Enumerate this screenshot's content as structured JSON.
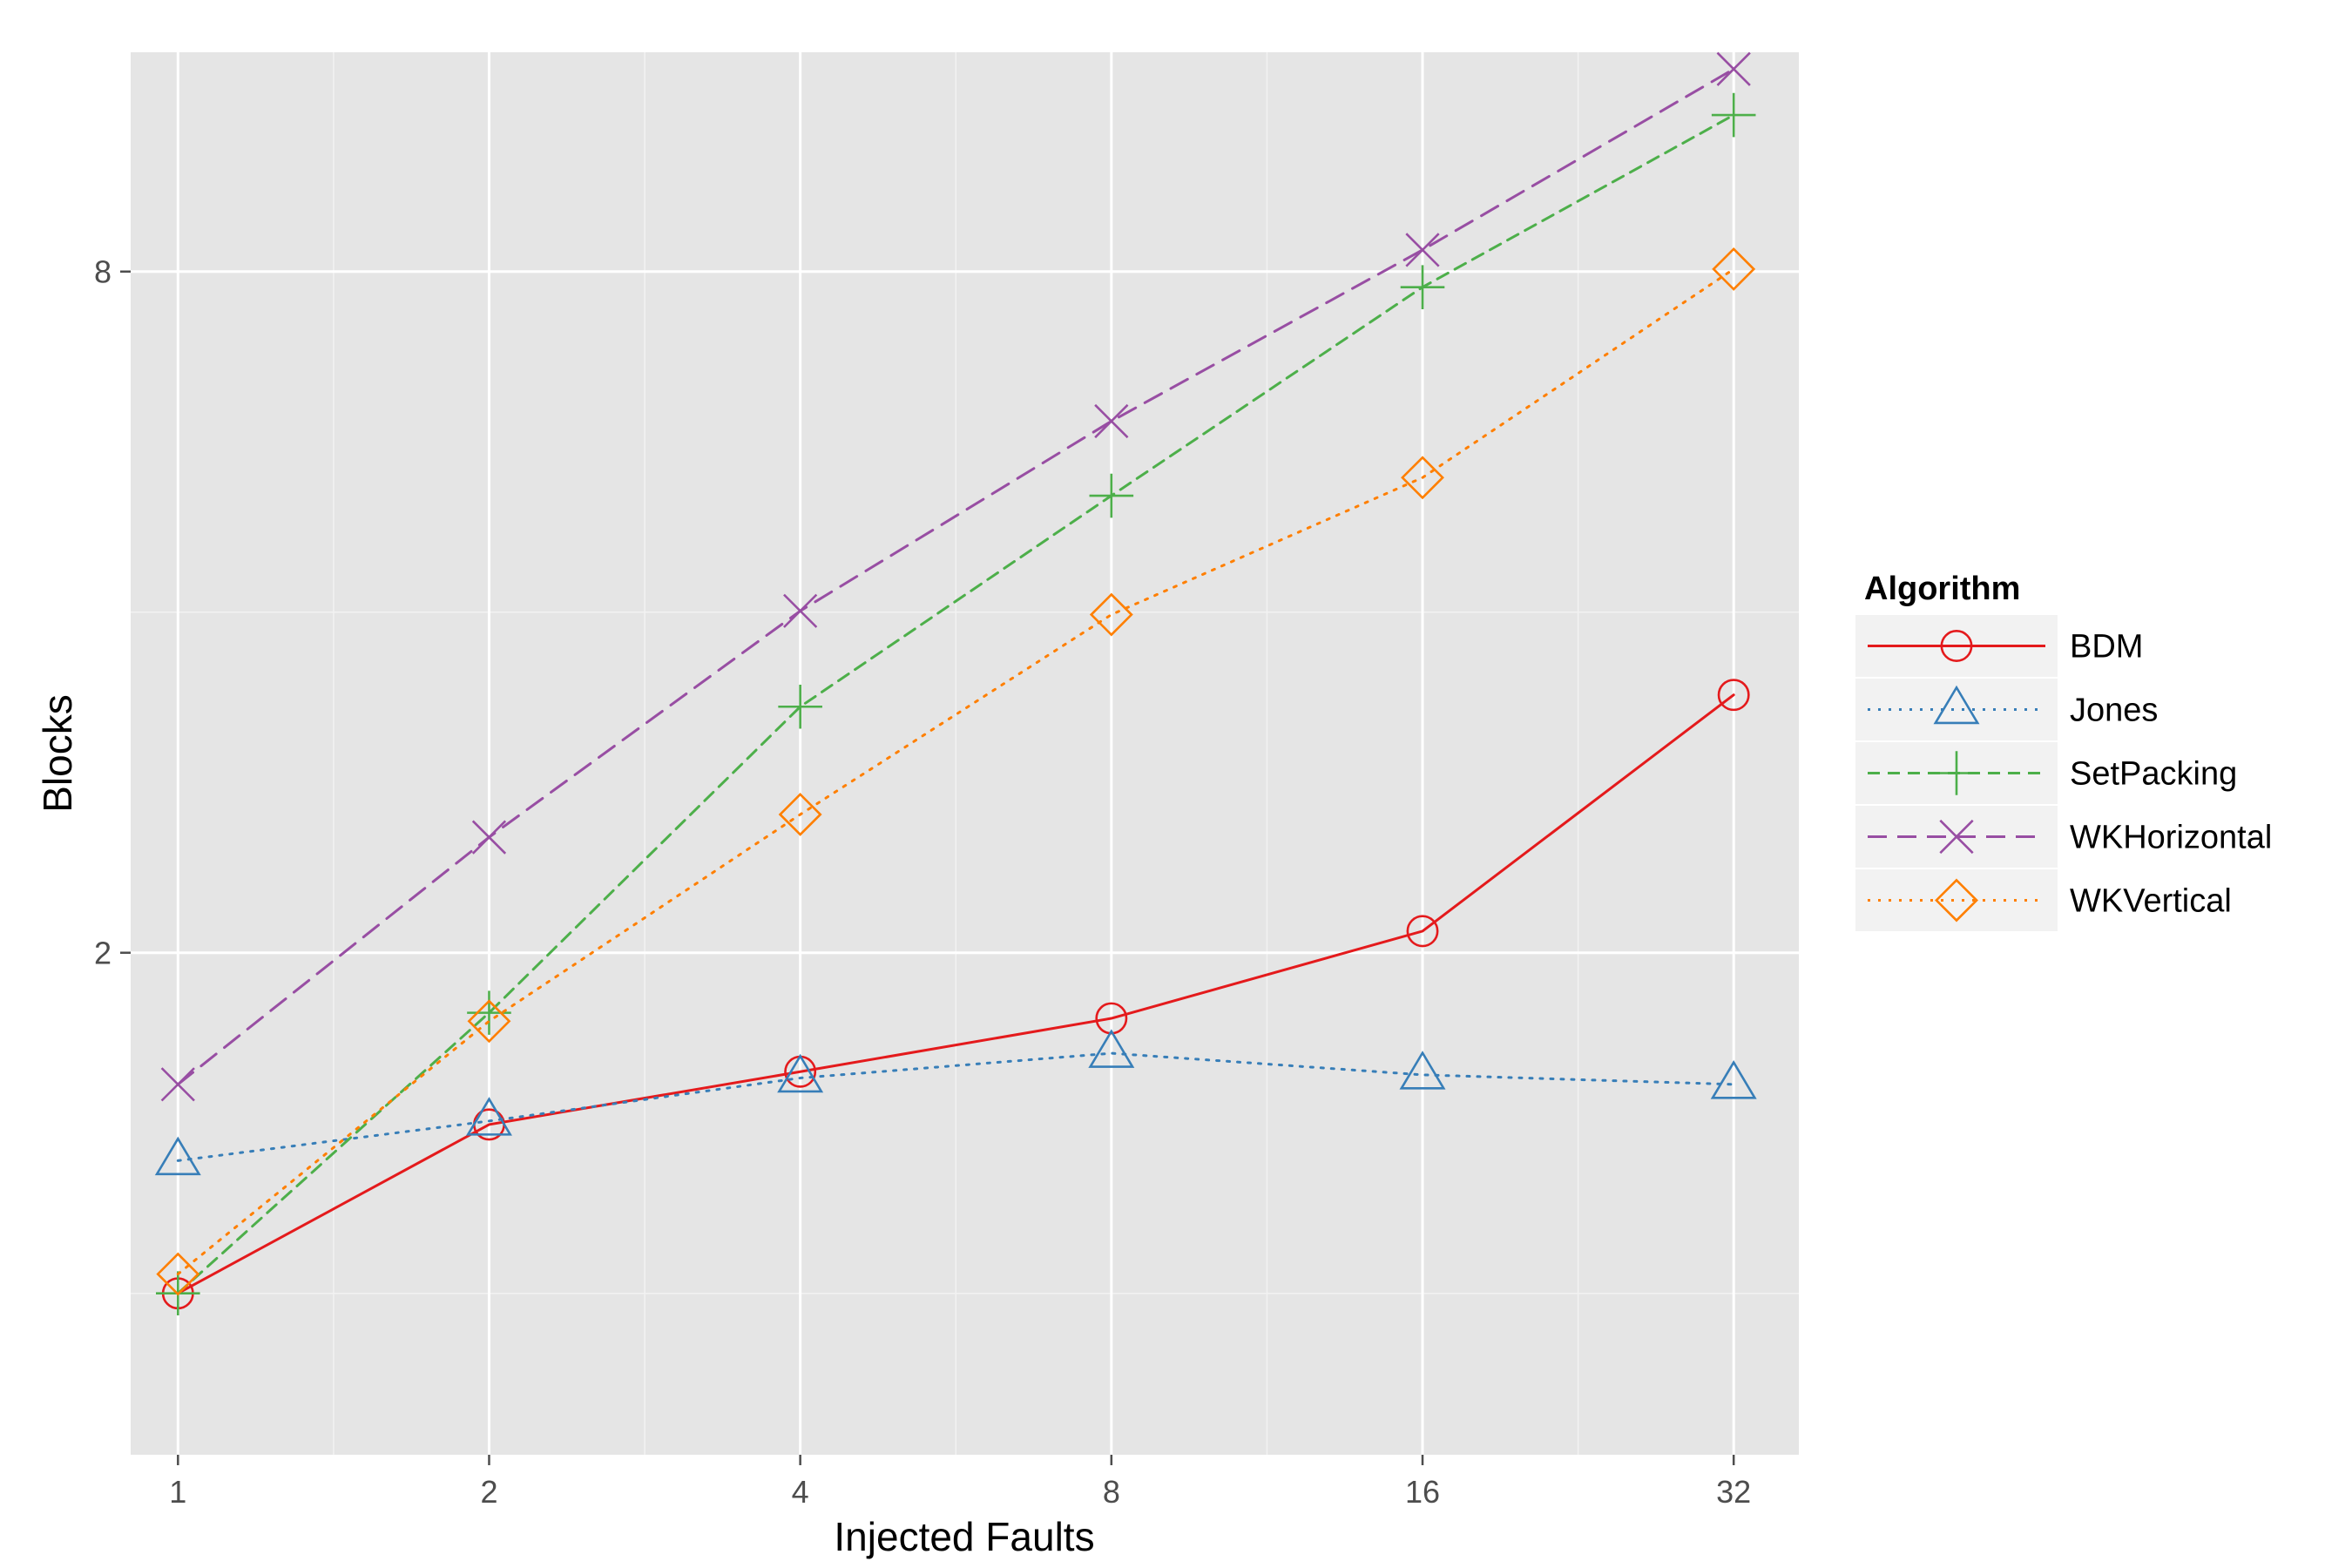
{
  "chart_data": {
    "type": "line",
    "title": "",
    "xlabel": "Injected Faults",
    "ylabel": "Blocks",
    "x_scale": "log2",
    "y_scale": "log",
    "x": [
      1,
      2,
      4,
      8,
      16,
      32
    ],
    "x_tick_labels": [
      "1",
      "2",
      "4",
      "8",
      "16",
      "32"
    ],
    "y_ticks": [
      2,
      8
    ],
    "y_tick_labels": [
      "2",
      "8"
    ],
    "xlim": [
      0.9,
      37
    ],
    "ylim": [
      0.72,
      12.5
    ],
    "grid": true,
    "background": "#e5e5e5",
    "legend": {
      "title": "Algorithm",
      "placement": "right"
    },
    "series": [
      {
        "name": "BDM",
        "color": "#e41a1c",
        "dash": "solid",
        "marker": "circle",
        "values": [
          1.0,
          1.41,
          1.57,
          1.75,
          2.09,
          3.38
        ]
      },
      {
        "name": "Jones",
        "color": "#377eb8",
        "dash": "dotted",
        "marker": "triangle",
        "values": [
          1.31,
          1.42,
          1.55,
          1.63,
          1.56,
          1.53
        ]
      },
      {
        "name": "SetPacking",
        "color": "#4daf4a",
        "dash": "dashed",
        "marker": "plus",
        "values": [
          1.0,
          1.77,
          3.3,
          5.07,
          7.75,
          11.0
        ]
      },
      {
        "name": "WKHorizontal",
        "color": "#984ea3",
        "dash": "longdash",
        "marker": "x",
        "values": [
          1.53,
          2.53,
          4.01,
          5.9,
          8.36,
          12.08
        ]
      },
      {
        "name": "WKVertical",
        "color": "#ff7f00",
        "dash": "dotted",
        "marker": "diamond",
        "values": [
          1.04,
          1.74,
          2.65,
          3.98,
          5.26,
          8.04
        ]
      }
    ]
  }
}
